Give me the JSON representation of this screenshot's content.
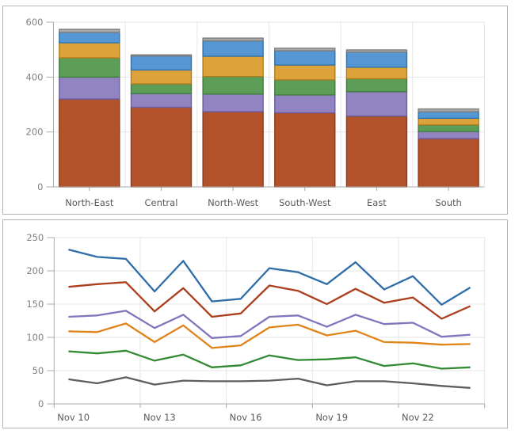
{
  "chart_data": [
    {
      "type": "bar",
      "stacked": true,
      "title": "",
      "categories": [
        "North-East",
        "Central",
        "North-West",
        "South-West",
        "East",
        "South"
      ],
      "series": [
        {
          "color": "#b2532c",
          "border": "#8e3b1d",
          "values": [
            320,
            290,
            274,
            270,
            258,
            176
          ]
        },
        {
          "color": "#9184c0",
          "border": "#6c5da6",
          "values": [
            80,
            50,
            64,
            65,
            89,
            26
          ]
        },
        {
          "color": "#5c9e58",
          "border": "#417e3e",
          "values": [
            70,
            35,
            64,
            55,
            47,
            24
          ]
        },
        {
          "color": "#dda33b",
          "border": "#b27c1e",
          "values": [
            55,
            51,
            74,
            54,
            42,
            24
          ]
        },
        {
          "color": "#5497d4",
          "border": "#2f73b0",
          "values": [
            38,
            51,
            56,
            52,
            55,
            24
          ]
        },
        {
          "color": "#a9a9a9",
          "border": "#7e7e7e",
          "values": [
            11,
            4,
            10,
            9,
            8,
            10
          ]
        }
      ],
      "ylim": [
        0,
        600
      ],
      "ytick_step": 200,
      "ytick_labels": [
        "0",
        "200",
        "400",
        "600"
      ],
      "grid": true,
      "legend": "none"
    },
    {
      "type": "line",
      "title": "",
      "x": [
        "Nov 10",
        "Nov 11",
        "Nov 12",
        "Nov 13",
        "Nov 14",
        "Nov 15",
        "Nov 16",
        "Nov 17",
        "Nov 18",
        "Nov 19",
        "Nov 20",
        "Nov 21",
        "Nov 22",
        "Nov 23",
        "Nov 24"
      ],
      "xtick_labels_shown": [
        "Nov 10",
        "Nov 13",
        "Nov 16",
        "Nov 19",
        "Nov 22"
      ],
      "xtick_every": 3,
      "series": [
        {
          "color": "#2e6da8",
          "values": [
            232,
            221,
            218,
            169,
            215,
            154,
            158,
            204,
            198,
            180,
            213,
            172,
            192,
            149,
            175
          ]
        },
        {
          "color": "#ac3e1d",
          "values": [
            176,
            180,
            183,
            139,
            174,
            131,
            136,
            178,
            170,
            150,
            173,
            152,
            160,
            128,
            147
          ]
        },
        {
          "color": "#8474bc",
          "values": [
            131,
            133,
            140,
            114,
            134,
            99,
            102,
            131,
            133,
            116,
            134,
            120,
            122,
            101,
            104
          ]
        },
        {
          "color": "#e08419",
          "values": [
            109,
            108,
            121,
            93,
            118,
            84,
            88,
            115,
            119,
            103,
            110,
            93,
            92,
            89,
            90
          ]
        },
        {
          "color": "#338a33",
          "values": [
            79,
            76,
            80,
            65,
            74,
            55,
            58,
            73,
            66,
            67,
            70,
            57,
            61,
            53,
            55
          ]
        },
        {
          "color": "#5e5e5e",
          "values": [
            37,
            31,
            40,
            29,
            35,
            34,
            34,
            35,
            38,
            28,
            34,
            34,
            31,
            27,
            24
          ]
        }
      ],
      "ylim": [
        0,
        250
      ],
      "ytick_step": 50,
      "ytick_labels": [
        "0",
        "50",
        "100",
        "150",
        "200",
        "250"
      ],
      "grid": true,
      "legend": "none"
    }
  ],
  "colors": {
    "axis": "#ababab",
    "grid": "#e6e6e6",
    "ytick_label": "#808080",
    "xtick_label": "#595959",
    "panel_border": "#b5b5b5",
    "background": "#ffffff"
  }
}
